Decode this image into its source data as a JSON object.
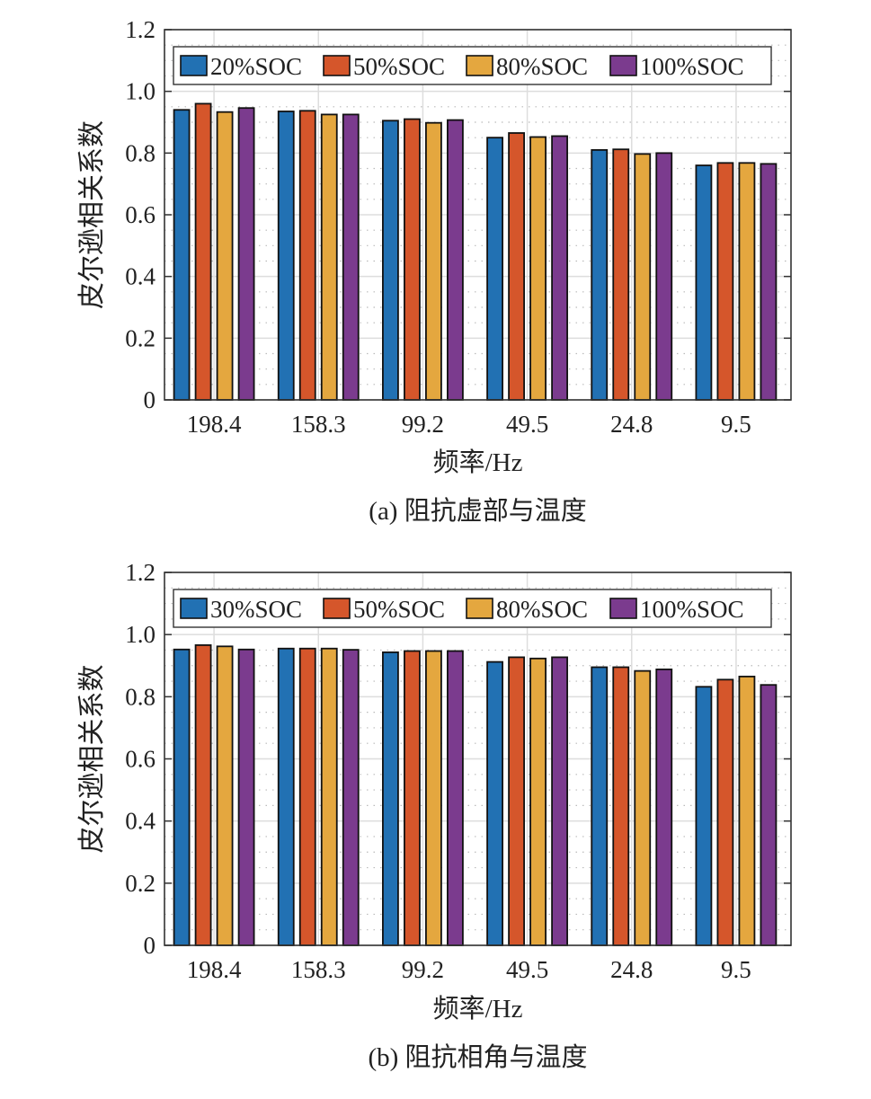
{
  "chart_data": [
    {
      "type": "bar",
      "caption": "(a) 阻抗虚部与温度",
      "xlabel": "频率/Hz",
      "ylabel": "皮尔逊相关系数",
      "ylim": [
        0,
        1.2
      ],
      "yticks": [
        "0",
        "0.2",
        "0.4",
        "0.6",
        "0.8",
        "1.0",
        "1.2"
      ],
      "categories": [
        "198.4",
        "158.3",
        "99.2",
        "49.5",
        "24.8",
        "9.5"
      ],
      "grid": true,
      "legend_position": "top",
      "series": [
        {
          "name": "20%SOC",
          "color": "#2271b3",
          "values": [
            0.94,
            0.935,
            0.905,
            0.85,
            0.81,
            0.76
          ]
        },
        {
          "name": "50%SOC",
          "color": "#d5562b",
          "values": [
            0.96,
            0.937,
            0.91,
            0.865,
            0.812,
            0.768
          ]
        },
        {
          "name": "80%SOC",
          "color": "#e4a73f",
          "values": [
            0.933,
            0.925,
            0.898,
            0.852,
            0.797,
            0.768
          ]
        },
        {
          "name": "100%SOC",
          "color": "#7b3b8e",
          "values": [
            0.946,
            0.925,
            0.907,
            0.855,
            0.8,
            0.765
          ]
        }
      ]
    },
    {
      "type": "bar",
      "caption": "(b) 阻抗相角与温度",
      "xlabel": "频率/Hz",
      "ylabel": "皮尔逊相关系数",
      "ylim": [
        0,
        1.2
      ],
      "yticks": [
        "0",
        "0.2",
        "0.4",
        "0.6",
        "0.8",
        "1.0",
        "1.2"
      ],
      "categories": [
        "198.4",
        "158.3",
        "99.2",
        "49.5",
        "24.8",
        "9.5"
      ],
      "grid": true,
      "legend_position": "top",
      "series": [
        {
          "name": "30%SOC",
          "color": "#2271b3",
          "values": [
            0.952,
            0.955,
            0.943,
            0.912,
            0.895,
            0.832
          ]
        },
        {
          "name": "50%SOC",
          "color": "#d5562b",
          "values": [
            0.966,
            0.955,
            0.947,
            0.927,
            0.895,
            0.855
          ]
        },
        {
          "name": "80%SOC",
          "color": "#e4a73f",
          "values": [
            0.962,
            0.955,
            0.947,
            0.923,
            0.883,
            0.865
          ]
        },
        {
          "name": "100%SOC",
          "color": "#7b3b8e",
          "values": [
            0.952,
            0.951,
            0.947,
            0.927,
            0.888,
            0.838
          ]
        }
      ]
    }
  ]
}
